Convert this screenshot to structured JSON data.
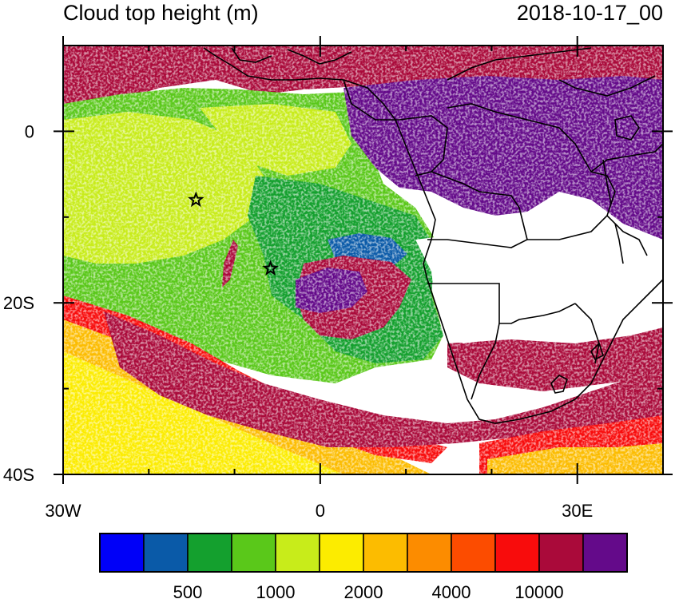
{
  "title_left": "Cloud top height (m)",
  "title_right": "2018-10-17_00",
  "map": {
    "lon_range": [
      -30,
      40
    ],
    "lat_range": [
      -40,
      10
    ],
    "x_ticks": [
      {
        "lon": -30,
        "label": "30W"
      },
      {
        "lon": 0,
        "label": "0"
      },
      {
        "lon": 30,
        "label": "30E"
      }
    ],
    "y_ticks": [
      {
        "lat": 0,
        "label": "0"
      },
      {
        "lat": -20,
        "label": "20S"
      },
      {
        "lat": -40,
        "label": "40S"
      }
    ],
    "markers": [
      {
        "name": "star-marker-1",
        "lon": -14.5,
        "lat": -8.0
      },
      {
        "name": "star-marker-2",
        "lon": -5.8,
        "lat": -16.0
      }
    ]
  },
  "colorbar": {
    "colors": [
      "#0000f8",
      "#0a5aa8",
      "#14a02e",
      "#5ac81a",
      "#c8ec1a",
      "#fcec00",
      "#fcbc00",
      "#fc8c00",
      "#fc4c00",
      "#f80c0c",
      "#aa0a3a",
      "#640a8a"
    ],
    "labels": [
      {
        "after_index": 1,
        "text": "500"
      },
      {
        "after_index": 3,
        "text": "1000"
      },
      {
        "after_index": 5,
        "text": "2000"
      },
      {
        "after_index": 7,
        "text": "4000"
      },
      {
        "after_index": 9,
        "text": "10000"
      }
    ]
  }
}
